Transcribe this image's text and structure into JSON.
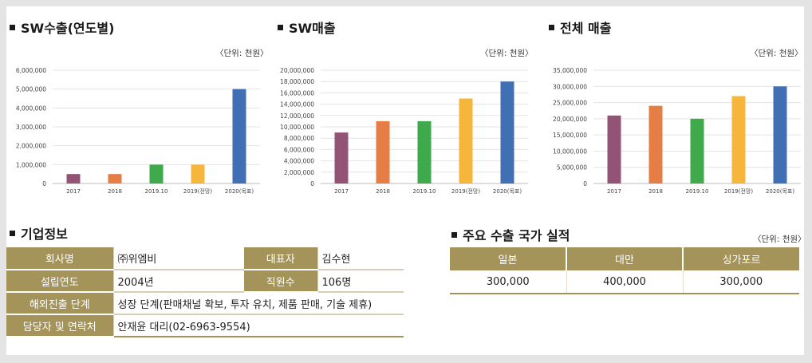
{
  "charts_section": {
    "sw_export": {
      "title": "SW수출(연도별)",
      "unit": "〈단위: 천원〉"
    },
    "sw_sales": {
      "title": "SW매출",
      "unit": "〈단위: 천원〉"
    },
    "total_sales": {
      "title": "전체 매출",
      "unit": "〈단위: 천원〉"
    }
  },
  "chart_data": [
    {
      "type": "bar",
      "title": "SW수출(연도별)",
      "categories": [
        "2017",
        "2018",
        "2019.10",
        "2019(전망)",
        "2020(목표)"
      ],
      "values": [
        500000,
        500000,
        1000000,
        1000000,
        5000000
      ],
      "ylim": [
        0,
        6000000
      ],
      "yticks": [
        "0",
        "1,000,000",
        "2,000,000",
        "3,000,000",
        "4,000,000",
        "5,000,000",
        "6,000,000"
      ],
      "grid": true,
      "colors": [
        "#935375",
        "#e57e45",
        "#3eaa4b",
        "#f6b63c",
        "#416fb4"
      ]
    },
    {
      "type": "bar",
      "title": "SW매출",
      "categories": [
        "2017",
        "2018",
        "2019.10",
        "2019(전망)",
        "2020(목표)"
      ],
      "values": [
        9000000,
        11000000,
        11000000,
        15000000,
        18000000
      ],
      "ylim": [
        0,
        20000000
      ],
      "yticks": [
        "0",
        "2,000,000",
        "4,000,000",
        "6,000,000",
        "8,000,000",
        "10,000,000",
        "12,000,000",
        "14,000,000",
        "16,000,000",
        "18,000,000",
        "20,000,000"
      ],
      "grid": true,
      "colors": [
        "#935375",
        "#e57e45",
        "#3eaa4b",
        "#f6b63c",
        "#416fb4"
      ]
    },
    {
      "type": "bar",
      "title": "전체 매출",
      "categories": [
        "2017",
        "2018",
        "2019.10",
        "2019(전망)",
        "2020(목표)"
      ],
      "values": [
        21000000,
        24000000,
        20000000,
        27000000,
        30000000
      ],
      "ylim": [
        0,
        35000000
      ],
      "yticks": [
        "0",
        "5,000,000",
        "10,000,000",
        "15,000,000",
        "20,000,000",
        "25,000,000",
        "30,000,000",
        "35,000,000"
      ],
      "grid": true,
      "colors": [
        "#935375",
        "#e57e45",
        "#3eaa4b",
        "#f6b63c",
        "#416fb4"
      ]
    }
  ],
  "company_info": {
    "title": "기업정보",
    "rows": [
      {
        "label1": "회사명",
        "value1": "㈜위엠비",
        "label2": "대표자",
        "value2": "김수현"
      },
      {
        "label1": "설립연도",
        "value1": "2004년",
        "label2": "직원수",
        "value2": "106명"
      }
    ],
    "overseas_stage": {
      "label": "해외진출 단계",
      "value": "성장 단계(판매채널 확보, 투자 유치, 제품 판매, 기술 제휴)"
    },
    "contact": {
      "label": "담당자 및 연락처",
      "value": "안재윤 대리(02-6963-9554)"
    }
  },
  "export_countries": {
    "title": "주요 수출 국가 실적",
    "unit": "〈단위: 천원〉",
    "headers": [
      "일본",
      "대만",
      "싱가포르"
    ],
    "values": [
      "300,000",
      "400,000",
      "300,000"
    ]
  },
  "theme": {
    "table_header": "#a59459",
    "page_bg": "#e4e4e4"
  }
}
